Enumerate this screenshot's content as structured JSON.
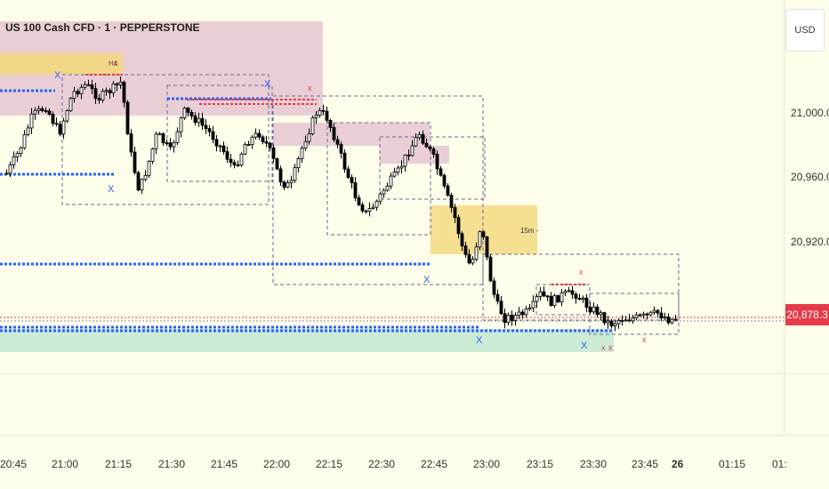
{
  "header": {
    "symbol_title": "US 100 Cash CFD · 1 · PEPPERSTONE"
  },
  "price_scale": {
    "currency_button": "USD",
    "labels": [
      "21,000.0",
      "20,960.0",
      "20,920.0"
    ],
    "last_price": "20,878.3",
    "last_price_color": "#e8394a"
  },
  "time_axis": {
    "labels": [
      "20:45",
      "21:00",
      "21:15",
      "21:30",
      "21:45",
      "22:00",
      "22:15",
      "22:30",
      "22:45",
      "23:00",
      "23:15",
      "23:30",
      "23:45",
      "26",
      "01:15",
      "01:"
    ]
  },
  "annotations": {
    "h4_label": "H4",
    "m15_label": "15m -",
    "x_marker": "X",
    "small_x_marker": "x"
  },
  "colors": {
    "background": "#fdfde9",
    "bullish_candle": "#ffffff",
    "bearish_candle": "#000000",
    "liquidity_line": "#2962ff",
    "sell_line": "#e8394a",
    "h4_zone": "#dcb0c8",
    "m15_zone": "#f3d87a",
    "demand_zone": "#bfe6d0"
  },
  "chart_data": {
    "type": "candlestick",
    "x_axis": "time (1 minute)",
    "y_axis": "price (USD)",
    "ylim": [
      20860,
      21025
    ],
    "last_price": 20878.3
  }
}
